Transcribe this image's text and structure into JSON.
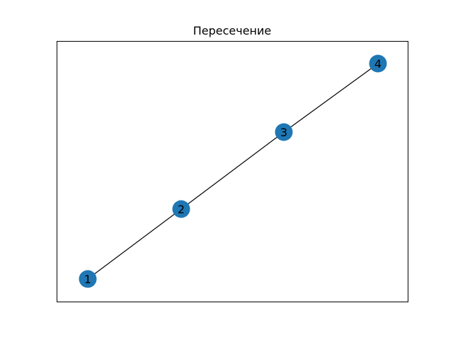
{
  "title": "Пересечение",
  "node_color": "#1f77b4",
  "edge_color": "#000000",
  "frame_color": "#000000",
  "nodes": [
    {
      "id": "1",
      "label": "1"
    },
    {
      "id": "2",
      "label": "2"
    },
    {
      "id": "3",
      "label": "3"
    },
    {
      "id": "4",
      "label": "4"
    }
  ],
  "edges": [
    {
      "source": "1",
      "target": "2"
    },
    {
      "source": "2",
      "target": "3"
    },
    {
      "source": "3",
      "target": "4"
    }
  ]
}
